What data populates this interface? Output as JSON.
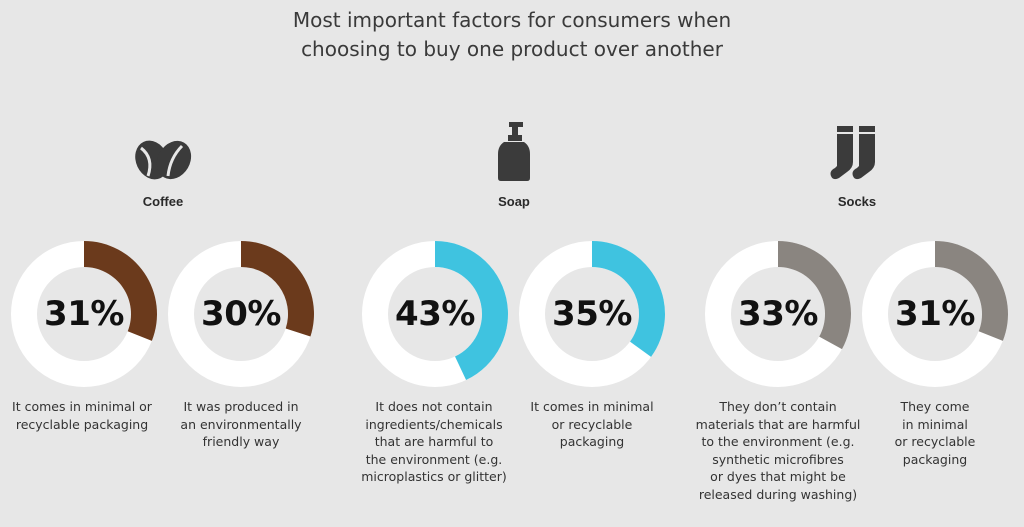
{
  "title": {
    "line1": "Most important factors for consumers when",
    "line2": "choosing to buy one product over another"
  },
  "categories": [
    {
      "label": "Coffee",
      "icon": "coffee-bean-icon"
    },
    {
      "label": "Soap",
      "icon": "soap-bottle-icon"
    },
    {
      "label": "Socks",
      "icon": "socks-icon"
    }
  ],
  "colors": {
    "background": "#e7e7e7",
    "ring_track": "#ffffff",
    "coffee": "#6b3a1c",
    "soap": "#3fc3e0",
    "socks": "#8a8580",
    "icon": "#3b3b3b"
  },
  "chart_data": {
    "type": "pie",
    "title": "Most important factors for consumers when choosing to buy one product over another",
    "unit": "%",
    "groups": [
      "Coffee",
      "Soap",
      "Socks"
    ],
    "series": [
      {
        "group": "Coffee",
        "value": 31,
        "label": "31%",
        "description": [
          "It comes in minimal or",
          "recyclable packaging"
        ]
      },
      {
        "group": "Coffee",
        "value": 30,
        "label": "30%",
        "description": [
          "It was produced in",
          "an environmentally",
          "friendly way"
        ]
      },
      {
        "group": "Soap",
        "value": 43,
        "label": "43%",
        "description": [
          "It does not contain",
          "ingredients/chemicals",
          "that are harmful to",
          "the environment (e.g.",
          "microplastics or glitter)"
        ]
      },
      {
        "group": "Soap",
        "value": 35,
        "label": "35%",
        "description": [
          "It comes in minimal",
          "or recyclable",
          "packaging"
        ]
      },
      {
        "group": "Socks",
        "value": 33,
        "label": "33%",
        "description": [
          "They don’t contain",
          "materials that are harmful",
          "to the environment (e.g.",
          "synthetic microfibres",
          "or dyes that might be",
          "released during washing)"
        ]
      },
      {
        "group": "Socks",
        "value": 31,
        "label": "31%",
        "description": [
          "They come",
          "in minimal",
          "or recyclable",
          "packaging"
        ]
      }
    ]
  }
}
